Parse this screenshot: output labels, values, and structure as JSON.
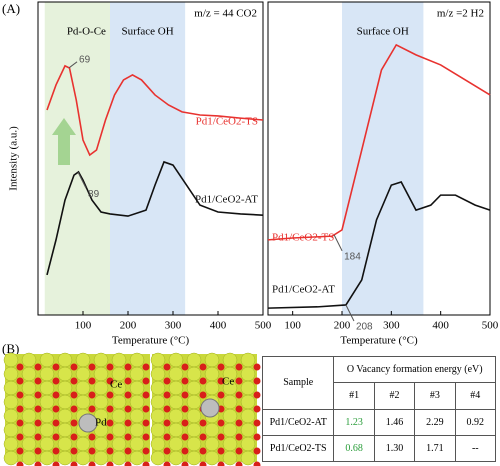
{
  "panels": [
    "(A)",
    "(B)"
  ],
  "chart_data": [
    {
      "type": "line",
      "title": "m/z = 44 CO2",
      "xlabel": "Temperature (°C)",
      "ylabel": "Intensity (a.u.)",
      "xlim": [
        0,
        500
      ],
      "xticks": [
        100,
        200,
        300,
        400,
        500
      ],
      "ylim": [
        0,
        100
      ],
      "regions": [
        {
          "label": "Pd-O-Ce",
          "range": [
            15,
            200
          ],
          "color": "#e6f2dc"
        },
        {
          "label": "Surface OH",
          "range": [
            160,
            327
          ],
          "color": "#d8e6f6"
        }
      ],
      "series": [
        {
          "name": "Pd1/CeO2-TS",
          "color": "#e8322f",
          "x": [
            20,
            40,
            60,
            70,
            85,
            100,
            115,
            130,
            150,
            170,
            190,
            210,
            230,
            260,
            290,
            320,
            360,
            400,
            450,
            500
          ],
          "values": [
            65.5,
            73.5,
            79.6,
            78.9,
            68.7,
            55.9,
            51.1,
            52.7,
            62.3,
            70.3,
            75.1,
            76.7,
            75.1,
            70.3,
            67.1,
            64.9,
            63.9,
            63.6,
            62.9,
            62.3
          ]
        },
        {
          "name": "Pd1/CeO2-AT",
          "color": "#111111",
          "x": [
            20,
            40,
            60,
            80,
            90,
            100,
            120,
            140,
            160,
            200,
            240,
            260,
            280,
            300,
            330,
            360,
            400,
            450,
            500
          ],
          "values": [
            12.8,
            24.0,
            36.7,
            44.7,
            45.7,
            43.1,
            36.7,
            32.9,
            32.3,
            31.6,
            33.5,
            41.5,
            48.9,
            47.9,
            41.5,
            35.1,
            32.9,
            32.3,
            31.9
          ]
        }
      ],
      "annotations": [
        {
          "value": 69,
          "series": 0
        },
        {
          "value": 89,
          "series": 1
        }
      ]
    },
    {
      "type": "line",
      "title": "m/z =2 H2",
      "xlabel": "Temperature (°C)",
      "xlim": [
        50,
        500
      ],
      "xticks": [
        100,
        200,
        300,
        400,
        500
      ],
      "ylim": [
        0,
        100
      ],
      "regions": [
        {
          "label": "Surface OH",
          "range": [
            200,
            365
          ],
          "color": "#d8e6f6"
        }
      ],
      "series": [
        {
          "name": "Pd1/CeO2-TS",
          "color": "#e8322f",
          "x": [
            50,
            100,
            180,
            200,
            240,
            280,
            310,
            350,
            400,
            450,
            500
          ],
          "values": [
            24.0,
            24.6,
            25.2,
            27.2,
            52.7,
            78.3,
            86.3,
            83.1,
            79.9,
            75.1,
            70.3
          ]
        },
        {
          "name": "Pd1/CeO2-AT",
          "color": "#111111",
          "x": [
            50,
            150,
            208,
            240,
            270,
            300,
            320,
            350,
            380,
            400,
            430,
            470,
            500
          ],
          "values": [
            2.2,
            2.6,
            3.2,
            11.2,
            30.4,
            41.5,
            42.5,
            33.5,
            35.1,
            38.3,
            38.3,
            35.1,
            33.5
          ]
        }
      ],
      "annotations": [
        {
          "value": 184,
          "series": 0
        },
        {
          "value": 208,
          "series": 1
        }
      ]
    }
  ],
  "structures": {
    "atom_labels": [
      "Ce",
      "Pd",
      "Ce"
    ]
  },
  "table": {
    "header": [
      "Sample",
      "O Vacancy formation energy (eV)"
    ],
    "subheader": [
      "#1",
      "#2",
      "#3",
      "#4"
    ],
    "rows": [
      [
        "Pd1/CeO2-AT",
        "1.23",
        "1.46",
        "2.29",
        "0.92"
      ],
      [
        "Pd1/CeO2-TS",
        "0.68",
        "1.30",
        "1.71",
        "--"
      ]
    ]
  }
}
